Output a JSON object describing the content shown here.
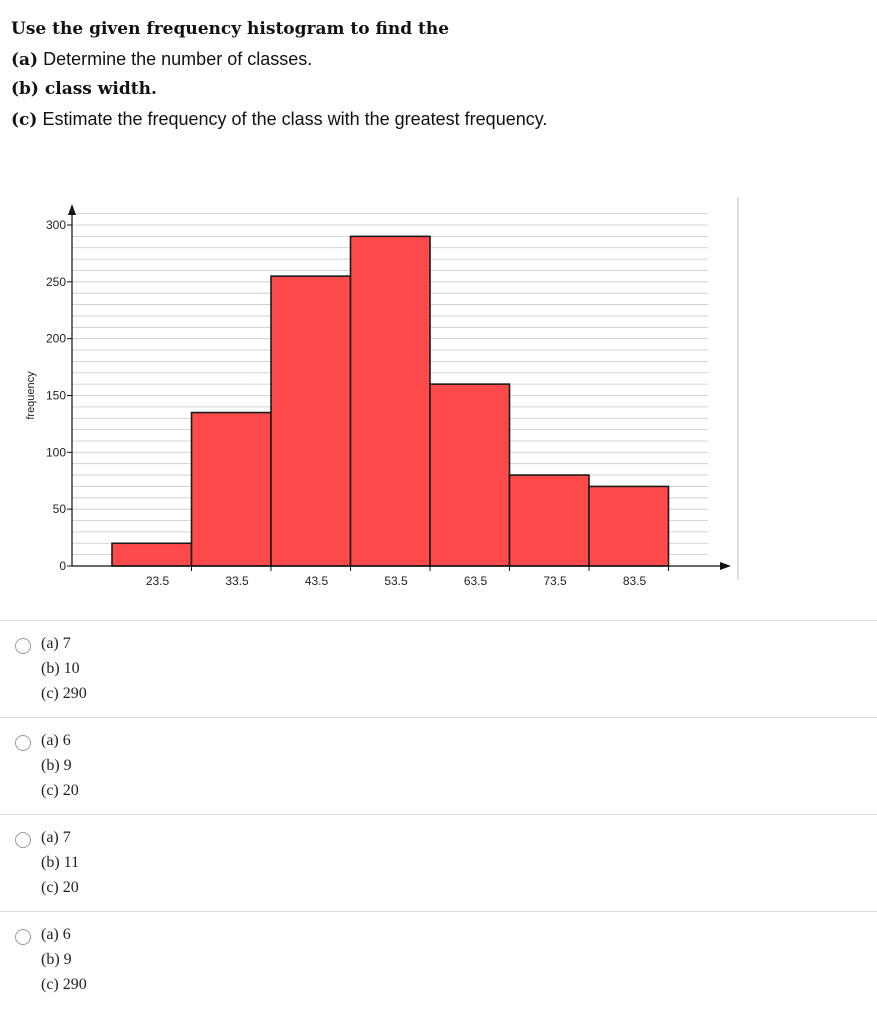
{
  "question": {
    "title": "Use the given frequency histogram to find the",
    "part_a_label": "(a)",
    "part_a_text": " Determine the number of classes.",
    "part_b": "(b) class width.",
    "part_c_label": "(c)",
    "part_c_text": " Estimate the frequency of the class with the greatest frequency."
  },
  "chart_data": {
    "type": "bar",
    "title": "",
    "xlabel": "",
    "ylabel": "frequency",
    "categories": [
      "23.5",
      "33.5",
      "43.5",
      "53.5",
      "63.5",
      "73.5",
      "83.5"
    ],
    "values": [
      20,
      135,
      255,
      290,
      160,
      80,
      70
    ],
    "ylim": [
      0,
      300
    ],
    "yticks": [
      0,
      50,
      100,
      150,
      200,
      250,
      300
    ],
    "grid": true,
    "bar_color": "#ff4a4c",
    "bar_edge_color": "#1a1a1a"
  },
  "options": [
    {
      "a": "(a) 7",
      "b": "(b) 10",
      "c": "(c) 290"
    },
    {
      "a": "(a) 6",
      "b": "(b) 9",
      "c": "(c) 20"
    },
    {
      "a": "(a) 7",
      "b": "(b) 11",
      "c": "(c) 20"
    },
    {
      "a": "(a) 6",
      "b": "(b) 9",
      "c": "(c) 290"
    }
  ]
}
